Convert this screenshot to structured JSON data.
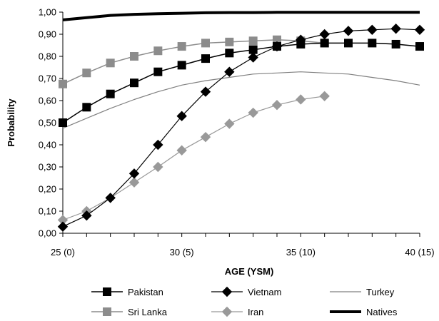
{
  "chart_data": {
    "type": "line",
    "xlabel": "AGE (YSM)",
    "ylabel": "Probability",
    "xlim": [
      25,
      40
    ],
    "ylim": [
      0,
      1
    ],
    "x_ticks": [
      25,
      30,
      35,
      40
    ],
    "x_tick_labels": [
      "25 (0)",
      "30 (5)",
      "35 (10)",
      "40 (15)"
    ],
    "y_ticks": [
      0,
      0.1,
      0.2,
      0.3,
      0.4,
      0.5,
      0.6,
      0.7,
      0.8,
      0.9,
      1.0
    ],
    "y_tick_labels": [
      "0,00",
      "0,10",
      "0,20",
      "0,30",
      "0,40",
      "0,50",
      "0,60",
      "0,70",
      "0,80",
      "0,90",
      "1,00"
    ],
    "grid": false,
    "legend_position": "bottom",
    "series": [
      {
        "name": "Pakistan",
        "color": "#000000",
        "marker": "square",
        "line_width": 1.5,
        "x": [
          25,
          26,
          27,
          28,
          29,
          30,
          31,
          32,
          33,
          34,
          35,
          36,
          37,
          38,
          39,
          40
        ],
        "y": [
          0.5,
          0.57,
          0.63,
          0.68,
          0.73,
          0.76,
          0.79,
          0.815,
          0.83,
          0.845,
          0.855,
          0.86,
          0.86,
          0.86,
          0.855,
          0.845
        ]
      },
      {
        "name": "Vietnam",
        "color": "#000000",
        "marker": "diamond",
        "line_width": 1.2,
        "x": [
          25,
          26,
          27,
          28,
          29,
          30,
          31,
          32,
          33,
          34,
          35,
          36,
          37,
          38,
          39,
          40
        ],
        "y": [
          0.03,
          0.08,
          0.16,
          0.27,
          0.4,
          0.53,
          0.64,
          0.73,
          0.795,
          0.845,
          0.875,
          0.9,
          0.915,
          0.92,
          0.925,
          0.92
        ]
      },
      {
        "name": "Turkey",
        "color": "#808080",
        "marker": "none",
        "line_width": 1.2,
        "x": [
          25,
          26,
          27,
          28,
          29,
          30,
          31,
          32,
          33,
          34,
          35,
          36,
          37,
          38,
          39,
          40
        ],
        "y": [
          0.475,
          0.52,
          0.565,
          0.605,
          0.64,
          0.67,
          0.69,
          0.705,
          0.72,
          0.725,
          0.73,
          0.725,
          0.72,
          0.705,
          0.69,
          0.67
        ]
      },
      {
        "name": "Sri Lanka",
        "color": "#8c8c8c",
        "marker": "square",
        "line_width": 1.5,
        "x": [
          25,
          26,
          27,
          28,
          29,
          30,
          31,
          32,
          33,
          34,
          35,
          36
        ],
        "y": [
          0.675,
          0.725,
          0.77,
          0.8,
          0.825,
          0.845,
          0.86,
          0.865,
          0.87,
          0.875,
          0.87,
          0.86
        ]
      },
      {
        "name": "Iran",
        "color": "#999999",
        "marker": "diamond",
        "line_width": 1.2,
        "x": [
          25,
          26,
          27,
          28,
          29,
          30,
          31,
          32,
          33,
          34,
          35,
          36
        ],
        "y": [
          0.06,
          0.1,
          0.16,
          0.23,
          0.3,
          0.375,
          0.435,
          0.495,
          0.545,
          0.58,
          0.605,
          0.62
        ]
      },
      {
        "name": "Natives",
        "color": "#000000",
        "marker": "none",
        "line_width": 4,
        "x": [
          25,
          26,
          27,
          28,
          29,
          30,
          31,
          32,
          33,
          34,
          35,
          36,
          37,
          38,
          39,
          40
        ],
        "y": [
          0.965,
          0.975,
          0.985,
          0.99,
          0.993,
          0.995,
          0.997,
          0.998,
          0.998,
          0.999,
          0.999,
          0.999,
          0.999,
          0.999,
          0.999,
          0.999
        ]
      }
    ]
  }
}
